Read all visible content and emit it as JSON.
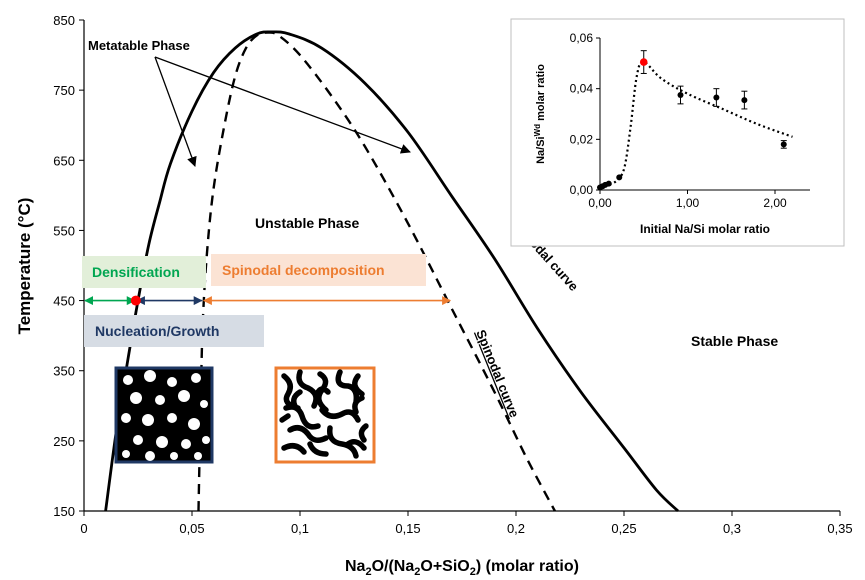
{
  "chart_data": [
    {
      "type": "line",
      "title": "",
      "xlabel_parts": [
        "Na",
        "2",
        "O/(Na",
        "2",
        "O+SiO",
        "2",
        ") (molar ratio)"
      ],
      "ylabel": "Temperature (°C)",
      "xlim": [
        0,
        0.35
      ],
      "ylim": [
        150,
        850
      ],
      "x_ticks": [
        0,
        0.05,
        0.1,
        0.15,
        0.2,
        0.25,
        0.3,
        0.35
      ],
      "x_tick_labels": [
        "0",
        "0,05",
        "0,1",
        "0,15",
        "0,2",
        "0,25",
        "0,3",
        "0,35"
      ],
      "y_ticks": [
        150,
        250,
        350,
        450,
        550,
        650,
        750,
        850
      ],
      "y_tick_labels": [
        "150",
        "250",
        "350",
        "450",
        "550",
        "650",
        "750",
        "850"
      ],
      "grid": false,
      "series": [
        {
          "name": "Binodal curve",
          "style": "solid",
          "x": [
            0.01,
            0.015,
            0.02,
            0.025,
            0.03,
            0.035,
            0.04,
            0.05,
            0.06,
            0.07,
            0.08,
            0.087,
            0.095,
            0.11,
            0.13,
            0.15,
            0.17,
            0.19,
            0.21,
            0.23,
            0.25,
            0.265,
            0.275
          ],
          "y": [
            150,
            265,
            360,
            450,
            530,
            590,
            645,
            720,
            775,
            810,
            830,
            833,
            830,
            810,
            760,
            690,
            600,
            510,
            410,
            320,
            240,
            180,
            150
          ]
        },
        {
          "name": "Spinodal curve",
          "style": "dashed",
          "x": [
            0.053,
            0.054,
            0.055,
            0.057,
            0.06,
            0.065,
            0.07,
            0.075,
            0.08,
            0.085,
            0.09,
            0.1,
            0.115,
            0.13,
            0.15,
            0.17,
            0.19,
            0.205,
            0.218
          ],
          "y": [
            150,
            300,
            420,
            520,
            610,
            700,
            770,
            810,
            828,
            832,
            828,
            800,
            740,
            670,
            560,
            440,
            320,
            225,
            150
          ]
        }
      ],
      "annotations": {
        "binodal_label": "Binodal curve",
        "spinodal_label": "Spinodal curve",
        "metastable_label": "Metatable Phase",
        "unstable_label": "Unstable Phase",
        "stable_label": "Stable Phase",
        "densification_label": "Densification",
        "spinodal_decomposition_label": "Spinodal decomposition",
        "nucleation_label": "Nucleation/Growth",
        "red_point": {
          "x": 0.024,
          "y": 450
        },
        "range_densification": [
          0,
          0.024
        ],
        "range_nucleation": [
          0.024,
          0.055
        ],
        "range_spinodal": [
          0.055,
          0.17
        ]
      },
      "colors": {
        "densification": "#00a651",
        "densification_bg": "#e2efd9",
        "spinodal": "#ed7d31",
        "spinodal_bg": "#fbe3d4",
        "nucleation": "#1f3864",
        "nucleation_bg": "#d6dce4",
        "red_point": "#ff0000",
        "curve": "#000000"
      }
    },
    {
      "type": "scatter",
      "title": "",
      "xlabel": "Initial Na/Si molar ratio",
      "ylabel_parts": [
        "Na/Si",
        "Wd",
        " molar ratio"
      ],
      "xlim": [
        0,
        2.4
      ],
      "ylim": [
        0,
        0.06
      ],
      "x_ticks": [
        0,
        1,
        2
      ],
      "x_tick_labels": [
        "0,00",
        "1,00",
        "2,00"
      ],
      "y_ticks": [
        0,
        0.02,
        0.04,
        0.06
      ],
      "y_tick_labels": [
        "0,00",
        "0,02",
        "0,04",
        "0,06"
      ],
      "points": {
        "x": [
          0.0,
          0.03,
          0.06,
          0.1,
          0.22,
          0.5,
          0.92,
          1.33,
          1.65,
          2.1
        ],
        "y": [
          0.001,
          0.0015,
          0.002,
          0.0025,
          0.005,
          0.0505,
          0.0375,
          0.0365,
          0.0355,
          0.018
        ],
        "err": [
          0,
          0,
          0,
          0,
          0,
          0.0045,
          0.0035,
          0.0035,
          0.0035,
          0.0015
        ]
      },
      "highlight_index": 5,
      "trend": {
        "x": [
          0.0,
          0.1,
          0.2,
          0.28,
          0.35,
          0.42,
          0.5,
          0.7,
          1.0,
          1.4,
          1.8,
          2.2
        ],
        "y": [
          0.001,
          0.002,
          0.004,
          0.009,
          0.025,
          0.045,
          0.0505,
          0.044,
          0.038,
          0.032,
          0.026,
          0.021
        ]
      }
    }
  ]
}
